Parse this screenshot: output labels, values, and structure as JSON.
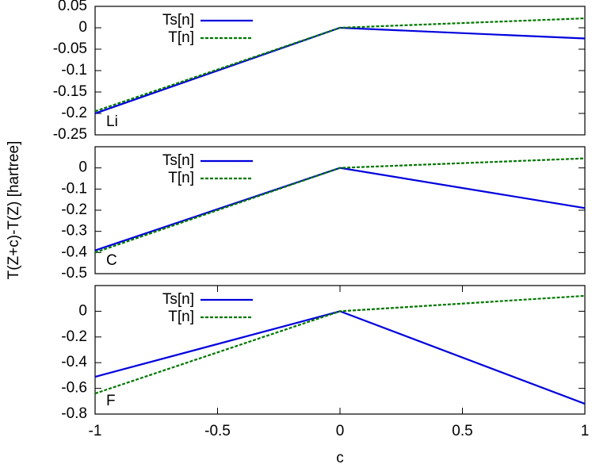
{
  "ylabel": "T(Z+c)-T(Z) [hartree]",
  "xlabel": "c",
  "chart_data": [
    {
      "type": "line",
      "label": "Li",
      "xlim": [
        -1,
        1
      ],
      "ylim": [
        -0.25,
        0.05
      ],
      "yticks": [
        0.05,
        0,
        -0.05,
        -0.1,
        -0.15,
        -0.2,
        -0.25
      ],
      "legend": "top-left",
      "x": [
        -1,
        0,
        1
      ],
      "series": [
        {
          "name": "Ts[n]",
          "color": "#0000dd",
          "dashed": false,
          "values": [
            -0.2,
            0,
            -0.025
          ]
        },
        {
          "name": "T[n]",
          "color": "#007700",
          "dashed": true,
          "values": [
            -0.195,
            0,
            0.022
          ]
        }
      ]
    },
    {
      "type": "line",
      "label": "C",
      "xlim": [
        -1,
        1
      ],
      "ylim": [
        -0.5,
        0.1
      ],
      "yticks": [
        0,
        -0.1,
        -0.2,
        -0.3,
        -0.4,
        -0.5
      ],
      "legend": "top-left",
      "x": [
        -1,
        0,
        1
      ],
      "series": [
        {
          "name": "Ts[n]",
          "color": "#0000dd",
          "dashed": false,
          "values": [
            -0.39,
            0,
            -0.19
          ]
        },
        {
          "name": "T[n]",
          "color": "#007700",
          "dashed": true,
          "values": [
            -0.4,
            0,
            0.045
          ]
        }
      ]
    },
    {
      "type": "line",
      "label": "F",
      "xlim": [
        -1,
        1
      ],
      "ylim": [
        -0.8,
        0.2
      ],
      "yticks": [
        0,
        -0.2,
        -0.4,
        -0.6,
        -0.8
      ],
      "xticks": [
        -1,
        -0.5,
        0,
        0.5,
        1
      ],
      "legend": "top-left",
      "x": [
        -1,
        0,
        1
      ],
      "series": [
        {
          "name": "Ts[n]",
          "color": "#0000dd",
          "dashed": false,
          "values": [
            -0.51,
            0,
            -0.72
          ]
        },
        {
          "name": "T[n]",
          "color": "#007700",
          "dashed": true,
          "values": [
            -0.64,
            0,
            0.12
          ]
        }
      ]
    }
  ]
}
